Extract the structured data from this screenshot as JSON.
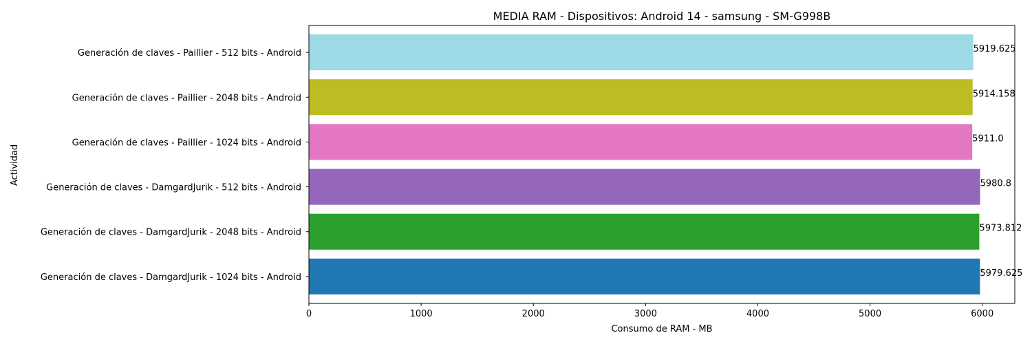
{
  "chart_data": {
    "type": "bar",
    "orientation": "horizontal",
    "title": "MEDIA RAM - Dispositivos: Android 14 - samsung - SM-G998B",
    "xlabel": "Consumo de RAM - MB",
    "ylabel": "Actividad",
    "xlim": [
      0,
      6290
    ],
    "xticks": [
      "0",
      "1000",
      "2000",
      "3000",
      "4000",
      "5000",
      "6000"
    ],
    "grid": false,
    "categories": [
      "Generación de claves - DamgardJurik - 1024 bits - Android",
      "Generación de claves - DamgardJurik - 2048 bits - Android",
      "Generación de claves - DamgardJurik - 512 bits - Android",
      "Generación de claves - Paillier - 1024 bits - Android",
      "Generación de claves - Paillier - 2048 bits - Android",
      "Generación de claves - Paillier - 512 bits - Android"
    ],
    "values": [
      5979.625,
      5973.812,
      5980.8,
      5911.0,
      5914.158,
      5919.625
    ],
    "value_labels": [
      "5979.625",
      "5973.812",
      "5980.8",
      "5911.0",
      "5914.158",
      "5919.625"
    ],
    "colors": [
      "#1f77b4",
      "#2ca02c",
      "#9467bd",
      "#e377c2",
      "#bcbd22",
      "#9edae5"
    ]
  }
}
